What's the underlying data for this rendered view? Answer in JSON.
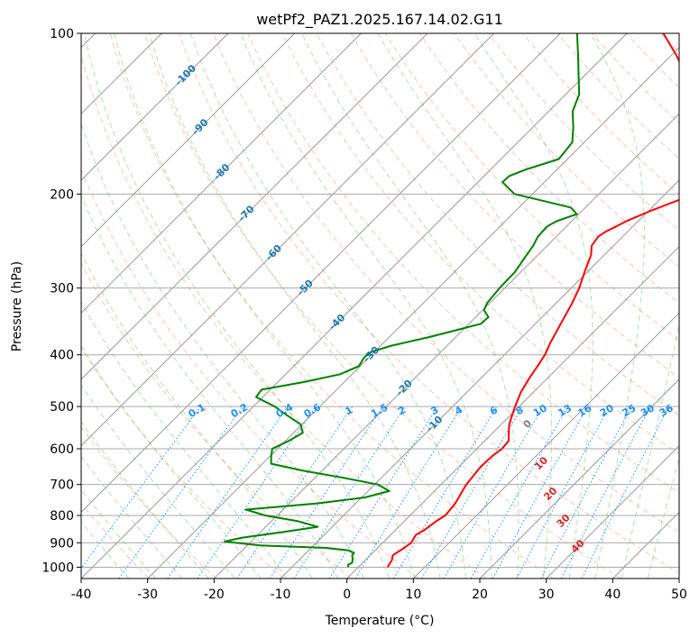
{
  "chart_data": {
    "type": "line",
    "title": "wetPf2_PAZ1.2025.167.14.02.G11",
    "xlabel": "Temperature (°C)",
    "ylabel": "Pressure (hPa)",
    "xlim": [
      -40,
      50
    ],
    "ylim": [
      1050,
      100
    ],
    "y_scale": "log",
    "grid": true,
    "skew": true,
    "x_ticks": [
      -40,
      -30,
      -20,
      -10,
      0,
      10,
      20,
      30,
      40,
      50
    ],
    "y_ticks": [
      1000,
      900,
      800,
      700,
      600,
      500,
      400,
      300,
      200,
      100
    ],
    "colors": {
      "temperature": "#ff0000",
      "dewpoint": "#008000",
      "isotherm_labels": "#1f77b4",
      "mixing_ratio": "#1e90ff",
      "moist_adiabat_labels": "#d62728",
      "zero_label": "#808080"
    },
    "series": [
      {
        "name": "",
        "role": "temperature",
        "points": [
          [
            1000,
            4.4
          ],
          [
            970,
            4.0
          ],
          [
            950,
            3.4
          ],
          [
            925,
            3.9
          ],
          [
            900,
            4.3
          ],
          [
            870,
            3.8
          ],
          [
            850,
            4.4
          ],
          [
            820,
            4.8
          ],
          [
            800,
            5.3
          ],
          [
            760,
            5.0
          ],
          [
            720,
            4.2
          ],
          [
            700,
            3.8
          ],
          [
            650,
            3.3
          ],
          [
            620,
            3.4
          ],
          [
            600,
            3.8
          ],
          [
            580,
            3.6
          ],
          [
            560,
            2.4
          ],
          [
            540,
            1.2
          ],
          [
            520,
            0.3
          ],
          [
            500,
            -0.6
          ],
          [
            470,
            -1.9
          ],
          [
            440,
            -2.8
          ],
          [
            420,
            -3.3
          ],
          [
            400,
            -3.9
          ],
          [
            380,
            -4.9
          ],
          [
            350,
            -6.2
          ],
          [
            320,
            -7.6
          ],
          [
            300,
            -8.8
          ],
          [
            280,
            -10.4
          ],
          [
            260,
            -12.0
          ],
          [
            250,
            -13.3
          ],
          [
            240,
            -13.7
          ],
          [
            235,
            -13.3
          ],
          [
            230,
            -12.5
          ],
          [
            225,
            -11.8
          ],
          [
            215,
            -9.7
          ],
          [
            205,
            -7.0
          ],
          [
            200,
            -6.2
          ],
          [
            190,
            -5.5
          ],
          [
            180,
            -6.2
          ],
          [
            170,
            -7.9
          ],
          [
            160,
            -10.2
          ],
          [
            150,
            -13.1
          ],
          [
            140,
            -17.3
          ],
          [
            130,
            -20.8
          ],
          [
            120,
            -24.7
          ],
          [
            110,
            -29.2
          ],
          [
            100,
            -34.5
          ]
        ]
      },
      {
        "name": "",
        "role": "dewpoint",
        "points": [
          [
            1000,
            -1.5
          ],
          [
            990,
            -1.9
          ],
          [
            980,
            -1.6
          ],
          [
            965,
            -2.1
          ],
          [
            950,
            -2.7
          ],
          [
            940,
            -2.8
          ],
          [
            930,
            -4.0
          ],
          [
            920,
            -7.8
          ],
          [
            910,
            -18.1
          ],
          [
            895,
            -24.0
          ],
          [
            880,
            -21.9
          ],
          [
            860,
            -16.8
          ],
          [
            840,
            -12.2
          ],
          [
            820,
            -16.0
          ],
          [
            800,
            -21.8
          ],
          [
            780,
            -25.6
          ],
          [
            760,
            -15.9
          ],
          [
            740,
            -9.5
          ],
          [
            720,
            -6.8
          ],
          [
            700,
            -9.5
          ],
          [
            680,
            -15.7
          ],
          [
            660,
            -22.7
          ],
          [
            640,
            -28.7
          ],
          [
            620,
            -29.8
          ],
          [
            600,
            -30.8
          ],
          [
            580,
            -29.5
          ],
          [
            560,
            -28.6
          ],
          [
            540,
            -30.2
          ],
          [
            520,
            -33.5
          ],
          [
            500,
            -36.8
          ],
          [
            480,
            -41.0
          ],
          [
            465,
            -41.3
          ],
          [
            450,
            -36.1
          ],
          [
            435,
            -31.8
          ],
          [
            420,
            -30.2
          ],
          [
            405,
            -30.7
          ],
          [
            395,
            -30.5
          ],
          [
            385,
            -28.5
          ],
          [
            370,
            -23.8
          ],
          [
            350,
            -18.2
          ],
          [
            340,
            -18.1
          ],
          [
            330,
            -19.8
          ],
          [
            320,
            -20.4
          ],
          [
            300,
            -20.8
          ],
          [
            280,
            -20.9
          ],
          [
            260,
            -21.7
          ],
          [
            250,
            -22.1
          ],
          [
            240,
            -22.8
          ],
          [
            230,
            -22.9
          ],
          [
            225,
            -22.3
          ],
          [
            218,
            -20.3
          ],
          [
            212,
            -22.2
          ],
          [
            205,
            -28.2
          ],
          [
            200,
            -32.7
          ],
          [
            190,
            -36.3
          ],
          [
            185,
            -36.2
          ],
          [
            180,
            -34.7
          ],
          [
            172,
            -31.3
          ],
          [
            160,
            -31.8
          ],
          [
            150,
            -33.9
          ],
          [
            140,
            -36.4
          ],
          [
            130,
            -38.0
          ],
          [
            120,
            -40.9
          ],
          [
            110,
            -44.0
          ],
          [
            100,
            -47.5
          ]
        ]
      }
    ],
    "isotherm_labels": [
      -100,
      -90,
      -80,
      -70,
      -60,
      -50,
      -40,
      -30,
      -20,
      -10
    ],
    "mixing_ratio_labels": [
      "0.1",
      "0.2",
      "0.4",
      "0.6",
      "1",
      "1.5",
      "2",
      "3",
      "4",
      "6",
      "8",
      "10",
      "13",
      "16",
      "20",
      "25",
      "30",
      "36"
    ],
    "moist_adiabat_labels": [
      "0",
      "10",
      "20",
      "30",
      "40"
    ]
  }
}
